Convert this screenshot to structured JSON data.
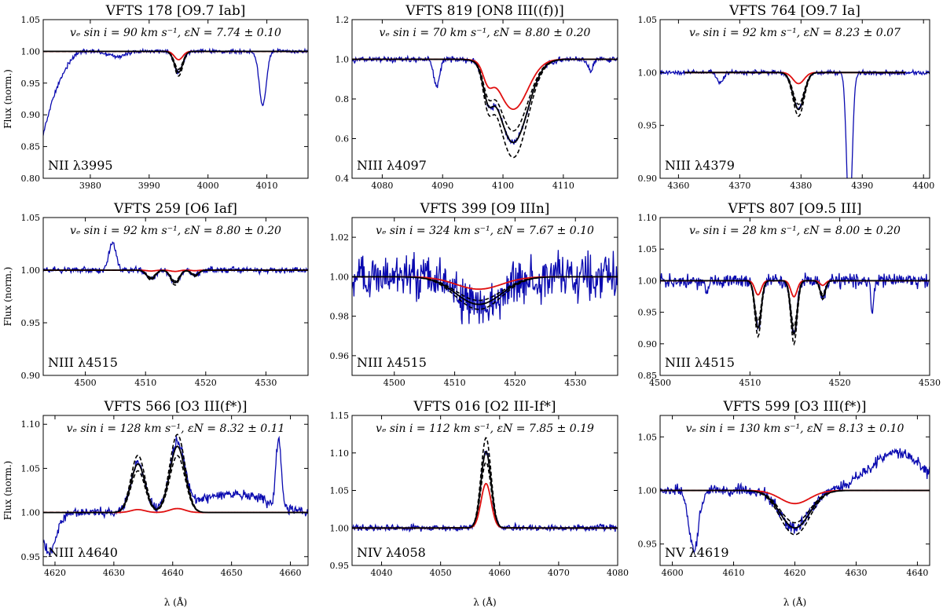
{
  "figure": {
    "ylabel": "Flux (norm.)",
    "xlabel": "λ (Å)"
  },
  "colors": {
    "observed": "#0a0ab0",
    "model_best": "#000000",
    "model_bounds": "#000000",
    "model_zero_n": "#e01010"
  },
  "chart_data": [
    {
      "type": "line",
      "title": "VFTS 178 [O9.7 Iab]",
      "annotation": "vₑ sin i = 90 km s⁻¹, εN = 7.74 ± 0.10",
      "line_label": "NII λ3995",
      "xlim": [
        3972,
        4017
      ],
      "ylim": [
        0.8,
        1.05
      ],
      "xticks": [
        3980,
        3990,
        4000,
        4010
      ],
      "yticks": [
        "0.80",
        "0.85",
        "0.90",
        "0.95",
        "1.00",
        "1.05"
      ],
      "continuum": 1.0,
      "model_range": [
        3972,
        4017
      ],
      "absorption": [
        {
          "center": 3995.0,
          "width": 0.7,
          "depth": 0.033
        }
      ],
      "obs_extra": [
        {
          "center": 4009.3,
          "width": 0.6,
          "depth": 0.085
        },
        {
          "center": 3984.5,
          "width": 1.5,
          "depth": 0.008
        }
      ],
      "obs_slope_start": {
        "x0": 3972,
        "x1": 3979,
        "depth": 0.13
      },
      "red_depth_factor": 0.4,
      "noise": 0.0025
    },
    {
      "type": "line",
      "title": "VFTS 819 [ON8 III((f))]",
      "annotation": "vₑ sin i = 70 km s⁻¹, εN = 8.80 ± 0.20",
      "line_label": "NIII λ4097",
      "xlim": [
        4075,
        4119
      ],
      "ylim": [
        0.4,
        1.2
      ],
      "xticks": [
        4080,
        4090,
        4100,
        4110
      ],
      "yticks": [
        "0.4",
        "0.6",
        "0.8",
        "1.0",
        "1.2"
      ],
      "continuum": 1.0,
      "model_range": [
        4075,
        4119
      ],
      "absorption": [
        {
          "center": 4097.5,
          "width": 0.8,
          "depth": 0.14
        },
        {
          "center": 4101.7,
          "width": 2.4,
          "depth": 0.42
        }
      ],
      "obs_extra": [
        {
          "center": 4089.0,
          "width": 0.5,
          "depth": 0.13
        },
        {
          "center": 4114.5,
          "width": 0.4,
          "depth": 0.06
        }
      ],
      "red_depth_factor": 0.6,
      "noise": 0.01
    },
    {
      "type": "line",
      "title": "VFTS 764 [O9.7 Ia]",
      "annotation": "vₑ sin i = 92 km s⁻¹, εN = 8.23 ± 0.07",
      "line_label": "NIII λ4379",
      "xlim": [
        4357,
        4401
      ],
      "ylim": [
        0.9,
        1.05
      ],
      "xticks": [
        4360,
        4370,
        4380,
        4390,
        4400
      ],
      "yticks": [
        "0.90",
        "0.95",
        "1.00",
        "1.05"
      ],
      "continuum": 1.0,
      "model_range": [
        4361,
        4397
      ],
      "absorption": [
        {
          "center": 4379.6,
          "width": 0.9,
          "depth": 0.035
        }
      ],
      "obs_extra": [
        {
          "center": 4366.8,
          "width": 0.5,
          "depth": 0.01
        },
        {
          "center": 4387.9,
          "width": 0.45,
          "depth": 0.14
        }
      ],
      "red_depth_factor": 0.3,
      "noise": 0.0015
    },
    {
      "type": "line",
      "title": "VFTS 259 [O6 Iaf]",
      "annotation": "vₑ sin i = 92 km s⁻¹, εN = 8.80 ± 0.20",
      "line_label": "NIII λ4515",
      "xlim": [
        4493,
        4537
      ],
      "ylim": [
        0.9,
        1.05
      ],
      "xticks": [
        4500,
        4510,
        4520,
        4530
      ],
      "yticks": [
        "0.90",
        "0.95",
        "1.00",
        "1.05"
      ],
      "continuum": 1.0,
      "model_range": [
        4493,
        4537
      ],
      "absorption": [
        {
          "center": 4510.9,
          "width": 0.7,
          "depth": 0.008
        },
        {
          "center": 4514.9,
          "width": 0.7,
          "depth": 0.012
        },
        {
          "center": 4518.2,
          "width": 0.6,
          "depth": 0.005
        }
      ],
      "obs_extra": [
        {
          "center": 4504.5,
          "width": 0.6,
          "depth": -0.026
        }
      ],
      "red_depth_factor": 0.1,
      "noise": 0.002
    },
    {
      "type": "line",
      "title": "VFTS 399 [O9 IIIn]",
      "annotation": "vₑ sin i = 324 km s⁻¹, εN = 7.67 ± 0.10",
      "line_label": "NIII λ4515",
      "xlim": [
        4493,
        4537
      ],
      "ylim": [
        0.95,
        1.03
      ],
      "xticks": [
        4500,
        4510,
        4520,
        4530
      ],
      "yticks": [
        "0.96",
        "0.98",
        "1.00",
        "1.02"
      ],
      "continuum": 1.0,
      "model_range": [
        4493,
        4537
      ],
      "absorption": [
        {
          "center": 4514.0,
          "width": 3.8,
          "depth": 0.014
        }
      ],
      "obs_extra": [],
      "red_depth_factor": 0.45,
      "noise": 0.008
    },
    {
      "type": "line",
      "title": "VFTS 807 [O9.5 III]",
      "annotation": "vₑ sin i = 28 km s⁻¹, εN = 8.00 ± 0.20",
      "line_label": "NIII λ4515",
      "xlim": [
        4500,
        4530
      ],
      "ylim": [
        0.85,
        1.1
      ],
      "xticks": [
        4500,
        4510,
        4520,
        4530
      ],
      "yticks": [
        "0.85",
        "0.90",
        "0.95",
        "1.00",
        "1.05",
        "1.10"
      ],
      "continuum": 1.0,
      "model_range": [
        4500,
        4530
      ],
      "absorption": [
        {
          "center": 4510.9,
          "width": 0.35,
          "depth": 0.075
        },
        {
          "center": 4514.9,
          "width": 0.35,
          "depth": 0.085
        },
        {
          "center": 4518.1,
          "width": 0.3,
          "depth": 0.025
        }
      ],
      "obs_extra": [
        {
          "center": 4523.6,
          "width": 0.15,
          "depth": 0.05
        },
        {
          "center": 4505.2,
          "width": 0.2,
          "depth": 0.015
        }
      ],
      "red_depth_factor": 0.3,
      "noise": 0.008
    },
    {
      "type": "line",
      "title": "VFTS 566 [O3 III(f*)]",
      "annotation": "vₑ sin i = 128 km s⁻¹, εN = 8.32 ± 0.11",
      "line_label": "NIII λ4640",
      "xlim": [
        4618,
        4663
      ],
      "ylim": [
        0.94,
        1.11
      ],
      "xticks": [
        4620,
        4630,
        4640,
        4650,
        4660
      ],
      "yticks": [
        "0.95",
        "1.00",
        "1.05",
        "1.10"
      ],
      "continuum": 1.0,
      "model_range": [
        4618,
        4663
      ],
      "absorption": [
        {
          "center": 4634.1,
          "width": 1.2,
          "depth": -0.055
        },
        {
          "center": 4640.8,
          "width": 1.3,
          "depth": -0.075
        }
      ],
      "obs_extra": [
        {
          "center": 4658.0,
          "width": 0.45,
          "depth": -0.075
        },
        {
          "center": 4650.0,
          "width": 5.5,
          "depth": -0.022
        },
        {
          "center": 4619.0,
          "width": 1.2,
          "depth": 0.045
        }
      ],
      "red_depth_factor": 0.06,
      "noise": 0.004
    },
    {
      "type": "line",
      "title": "VFTS 016 [O2 III-If*]",
      "annotation": "vₑ sin i = 112 km s⁻¹, εN = 7.85 ± 0.19",
      "line_label": "NIV λ4058",
      "xlim": [
        4035,
        4080
      ],
      "ylim": [
        0.95,
        1.15
      ],
      "xticks": [
        4040,
        4050,
        4060,
        4070,
        4080
      ],
      "yticks": [
        "0.95",
        "1.00",
        "1.05",
        "1.10",
        "1.15"
      ],
      "continuum": 1.0,
      "model_range": [
        4035,
        4080
      ],
      "absorption": [
        {
          "center": 4057.7,
          "width": 0.85,
          "depth": -0.102
        }
      ],
      "obs_extra": [],
      "red_depth_factor": 0.58,
      "noise": 0.003
    },
    {
      "type": "line",
      "title": "VFTS 599 [O3 III(f*)]",
      "annotation": "vₑ sin i = 130 km s⁻¹, εN = 8.13 ± 0.10",
      "line_label": "NV λ4619",
      "xlim": [
        4598,
        4642
      ],
      "ylim": [
        0.93,
        1.07
      ],
      "xticks": [
        4600,
        4610,
        4620,
        4630,
        4640
      ],
      "yticks": [
        "0.95",
        "1.00",
        "1.05"
      ],
      "continuum": 1.0,
      "model_range": [
        4598,
        4642
      ],
      "absorption": [
        {
          "center": 4620.0,
          "width": 2.4,
          "depth": 0.035
        }
      ],
      "obs_extra": [
        {
          "center": 4603.5,
          "width": 0.8,
          "depth": 0.055
        },
        {
          "center": 4636.5,
          "width": 4.5,
          "depth": -0.035
        }
      ],
      "red_depth_factor": 0.35,
      "noise": 0.004
    }
  ]
}
